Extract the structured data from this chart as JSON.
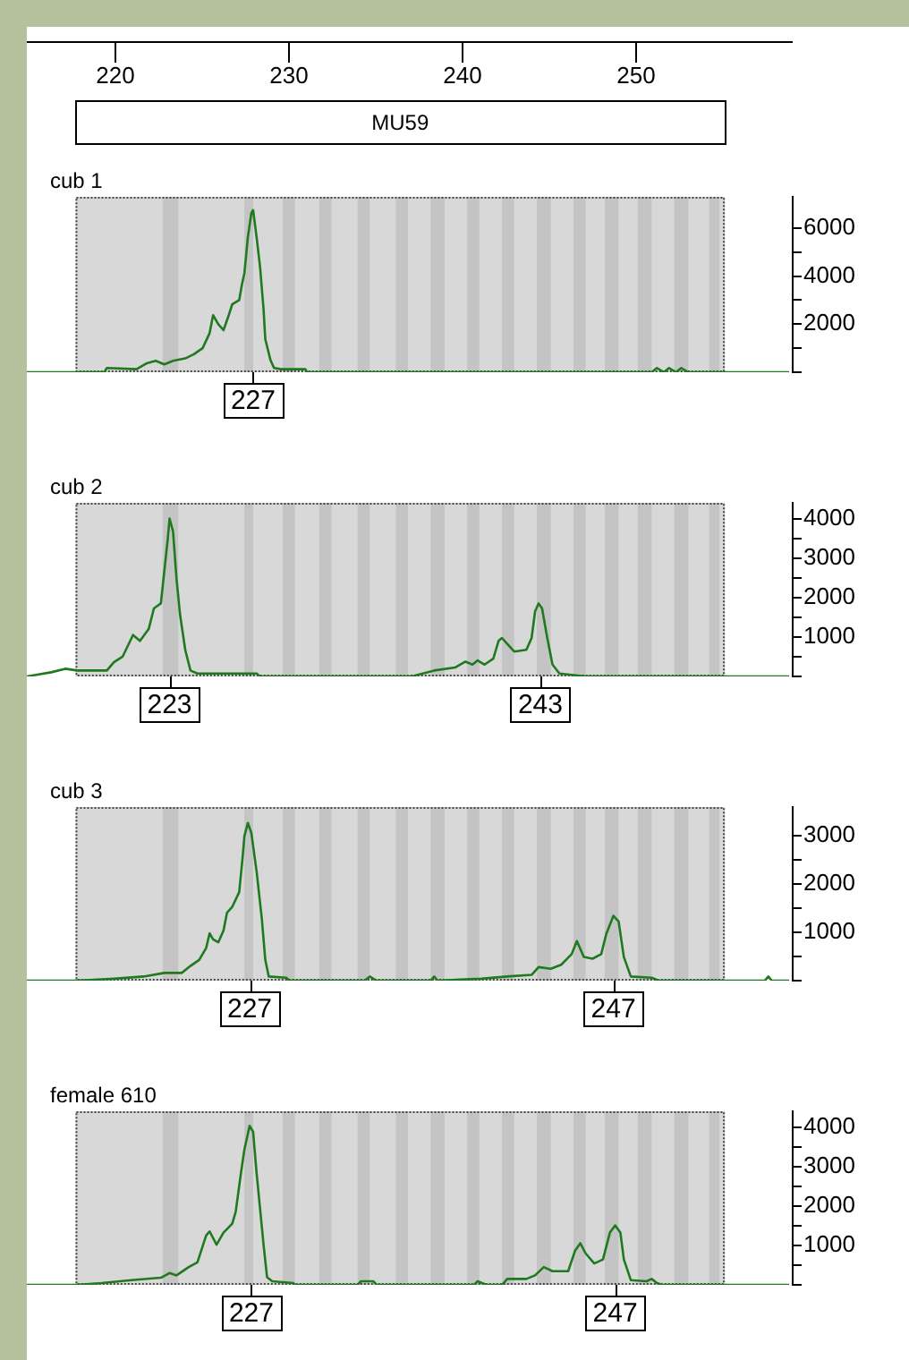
{
  "chart_data": [
    {
      "type": "line",
      "title": "cub 1",
      "xlim": [
        215,
        259
      ],
      "ylim": [
        0,
        7300
      ],
      "marker": "none",
      "xticks": [
        220,
        230,
        240,
        250
      ],
      "yticks": [
        {
          "value": 0,
          "label": null
        },
        {
          "value": 1000,
          "label": null
        },
        2000,
        {
          "value": 3000,
          "label": null
        },
        4000,
        {
          "value": 5000,
          "label": null
        },
        6000
      ],
      "bands": [
        {
          "axis": "x",
          "from": 217.8,
          "to": 255.1,
          "label": "MU59",
          "color": "#d8d8d8"
        },
        {
          "axis": "x",
          "from": 222.8,
          "to": 223.7,
          "color": "#c4c4c4"
        },
        {
          "axis": "x",
          "from": 227.5,
          "to": 228.0,
          "color": "#c4c4c4"
        },
        {
          "axis": "x",
          "from": 229.7,
          "to": 230.4,
          "color": "#c4c4c4"
        },
        {
          "axis": "x",
          "from": 231.8,
          "to": 232.5,
          "color": "#c4c4c4"
        },
        {
          "axis": "x",
          "from": 234.0,
          "to": 234.7,
          "color": "#c4c4c4"
        },
        {
          "axis": "x",
          "from": 236.2,
          "to": 236.9,
          "color": "#c4c4c4"
        },
        {
          "axis": "x",
          "from": 238.2,
          "to": 239.0,
          "color": "#c4c4c4"
        },
        {
          "axis": "x",
          "from": 240.3,
          "to": 241.0,
          "color": "#c4c4c4"
        },
        {
          "axis": "x",
          "from": 242.3,
          "to": 243.0,
          "color": "#c4c4c4"
        },
        {
          "axis": "x",
          "from": 244.3,
          "to": 245.1,
          "color": "#c4c4c4"
        },
        {
          "axis": "x",
          "from": 246.4,
          "to": 247.1,
          "color": "#c4c4c4"
        },
        {
          "axis": "x",
          "from": 248.2,
          "to": 249.0,
          "color": "#c4c4c4"
        },
        {
          "axis": "x",
          "from": 250.1,
          "to": 250.9,
          "color": "#c4c4c4"
        },
        {
          "axis": "x",
          "from": 252.2,
          "to": 253.0,
          "color": "#c4c4c4"
        },
        {
          "axis": "x",
          "from": 254.2,
          "to": 254.8,
          "color": "#c4c4c4"
        }
      ],
      "annotations": [
        {
          "text": "227",
          "x": 228.0,
          "y": 0
        }
      ],
      "x": [
        215,
        219.45,
        219.6,
        221.3,
        221.9,
        222.4,
        222.9,
        223.4,
        224.1,
        224.6,
        225.1,
        225.5,
        225.7,
        226.0,
        226.3,
        226.6,
        226.8,
        227.2,
        227.35,
        227.5,
        227.7,
        227.9,
        228.0,
        228.2,
        228.4,
        228.6,
        228.7,
        229.0,
        229.2,
        229.6,
        231.0,
        231.1,
        250.9,
        251.2,
        251.6,
        251.9,
        252.3,
        252.6,
        253.0,
        258.8
      ],
      "series": [
        {
          "color": "#1f7a1f",
          "values": [
            0,
            0,
            175,
            125,
            375,
            475,
            325,
            475,
            575,
            750,
            1000,
            1625,
            2375,
            2000,
            1750,
            2375,
            2825,
            3000,
            3625,
            4125,
            5625,
            6625,
            6750,
            5625,
            4375,
            2625,
            1375,
            500,
            175,
            125,
            125,
            0,
            0,
            175,
            0,
            175,
            0,
            175,
            0,
            0
          ]
        }
      ]
    },
    {
      "type": "line",
      "title": "cub 2",
      "xlim": [
        215,
        259
      ],
      "ylim": [
        0,
        4400
      ],
      "marker": "none",
      "tick_labels": "y",
      "yticks": [
        {
          "value": 0,
          "label": null
        },
        {
          "value": 500,
          "label": null
        },
        1000,
        {
          "value": 1500,
          "label": null
        },
        2000,
        {
          "value": 2500,
          "label": null
        },
        3000,
        {
          "value": 3500,
          "label": null
        },
        4000
      ],
      "bands": [
        {
          "axis": "x",
          "from": 217.8,
          "to": 255.1,
          "color": "#d8d8d8"
        },
        {
          "axis": "x",
          "from": 222.8,
          "to": 223.7,
          "color": "#c4c4c4"
        },
        {
          "axis": "x",
          "from": 227.5,
          "to": 228.0,
          "color": "#c4c4c4"
        },
        {
          "axis": "x",
          "from": 229.7,
          "to": 230.4,
          "color": "#c4c4c4"
        },
        {
          "axis": "x",
          "from": 231.8,
          "to": 232.5,
          "color": "#c4c4c4"
        },
        {
          "axis": "x",
          "from": 234.0,
          "to": 234.7,
          "color": "#c4c4c4"
        },
        {
          "axis": "x",
          "from": 236.2,
          "to": 236.9,
          "color": "#c4c4c4"
        },
        {
          "axis": "x",
          "from": 238.2,
          "to": 239.0,
          "color": "#c4c4c4"
        },
        {
          "axis": "x",
          "from": 240.3,
          "to": 241.0,
          "color": "#c4c4c4"
        },
        {
          "axis": "x",
          "from": 242.3,
          "to": 243.0,
          "color": "#c4c4c4"
        },
        {
          "axis": "x",
          "from": 244.3,
          "to": 245.1,
          "color": "#c4c4c4"
        },
        {
          "axis": "x",
          "from": 246.4,
          "to": 247.1,
          "color": "#c4c4c4"
        },
        {
          "axis": "x",
          "from": 248.2,
          "to": 249.0,
          "color": "#c4c4c4"
        },
        {
          "axis": "x",
          "from": 250.1,
          "to": 250.9,
          "color": "#c4c4c4"
        },
        {
          "axis": "x",
          "from": 252.2,
          "to": 253.0,
          "color": "#c4c4c4"
        },
        {
          "axis": "x",
          "from": 254.2,
          "to": 254.8,
          "color": "#c4c4c4"
        }
      ],
      "annotations": [
        {
          "text": "223",
          "x": 223.2,
          "y": 0
        },
        {
          "text": "243",
          "x": 244.5,
          "y": 0
        }
      ],
      "x": [
        215,
        216.4,
        217.2,
        217.9,
        219.6,
        220.0,
        220.5,
        221.1,
        221.5,
        222.0,
        222.3,
        222.7,
        223.1,
        223.2,
        223.4,
        223.6,
        223.8,
        224.1,
        224.4,
        224.8,
        226.8,
        228.2,
        228.4,
        237.1,
        238.4,
        239.6,
        240.2,
        240.6,
        240.9,
        241.3,
        241.8,
        242.1,
        242.3,
        242.6,
        243.0,
        243.7,
        244.0,
        244.2,
        244.4,
        244.6,
        244.9,
        245.2,
        245.6,
        247.1,
        258.8
      ],
      "series": [
        {
          "color": "#1f7a1f",
          "values": [
            0,
            105,
            195,
            150,
            150,
            360,
            500,
            1050,
            900,
            1200,
            1725,
            1850,
            3500,
            4000,
            3675,
            2475,
            1575,
            675,
            150,
            75,
            75,
            75,
            0,
            0,
            150,
            225,
            375,
            300,
            405,
            300,
            450,
            900,
            975,
            825,
            630,
            675,
            975,
            1650,
            1850,
            1725,
            975,
            300,
            75,
            0,
            0
          ]
        }
      ]
    },
    {
      "type": "line",
      "title": "cub 3",
      "xlim": [
        215,
        259
      ],
      "ylim": [
        0,
        3600
      ],
      "marker": "none",
      "tick_labels": "y",
      "yticks": [
        {
          "value": 0,
          "label": null
        },
        {
          "value": 500,
          "label": null
        },
        1000,
        {
          "value": 1500,
          "label": null
        },
        2000,
        {
          "value": 2500,
          "label": null
        },
        3000
      ],
      "bands": [
        {
          "axis": "x",
          "from": 217.8,
          "to": 255.1,
          "color": "#d8d8d8"
        },
        {
          "axis": "x",
          "from": 222.8,
          "to": 223.7,
          "color": "#c4c4c4"
        },
        {
          "axis": "x",
          "from": 227.5,
          "to": 228.0,
          "color": "#c4c4c4"
        },
        {
          "axis": "x",
          "from": 229.7,
          "to": 230.4,
          "color": "#c4c4c4"
        },
        {
          "axis": "x",
          "from": 231.8,
          "to": 232.5,
          "color": "#c4c4c4"
        },
        {
          "axis": "x",
          "from": 234.0,
          "to": 234.7,
          "color": "#c4c4c4"
        },
        {
          "axis": "x",
          "from": 236.2,
          "to": 236.9,
          "color": "#c4c4c4"
        },
        {
          "axis": "x",
          "from": 238.2,
          "to": 239.0,
          "color": "#c4c4c4"
        },
        {
          "axis": "x",
          "from": 240.3,
          "to": 241.0,
          "color": "#c4c4c4"
        },
        {
          "axis": "x",
          "from": 242.3,
          "to": 243.0,
          "color": "#c4c4c4"
        },
        {
          "axis": "x",
          "from": 244.3,
          "to": 245.1,
          "color": "#c4c4c4"
        },
        {
          "axis": "x",
          "from": 246.4,
          "to": 247.1,
          "color": "#c4c4c4"
        },
        {
          "axis": "x",
          "from": 248.2,
          "to": 249.0,
          "color": "#c4c4c4"
        },
        {
          "axis": "x",
          "from": 250.1,
          "to": 250.9,
          "color": "#c4c4c4"
        },
        {
          "axis": "x",
          "from": 252.2,
          "to": 253.0,
          "color": "#c4c4c4"
        },
        {
          "axis": "x",
          "from": 254.2,
          "to": 254.8,
          "color": "#c4c4c4"
        }
      ],
      "annotations": [
        {
          "text": "227",
          "x": 227.8,
          "y": 0
        },
        {
          "text": "247",
          "x": 248.7,
          "y": 0
        }
      ],
      "x": [
        215,
        217.9,
        220.0,
        221.7,
        222.9,
        223.9,
        224.4,
        224.9,
        225.3,
        225.5,
        225.7,
        226.0,
        226.3,
        226.5,
        226.8,
        227.2,
        227.4,
        227.5,
        227.7,
        227.9,
        228.2,
        228.5,
        228.7,
        228.9,
        229.9,
        230.1,
        234.4,
        234.7,
        235.1,
        238.2,
        238.4,
        238.6,
        241.1,
        242.6,
        244.0,
        244.4,
        245.1,
        245.7,
        246.3,
        246.6,
        247.0,
        247.5,
        248.0,
        248.3,
        248.7,
        249.0,
        249.3,
        249.7,
        250.9,
        251.3,
        257.4,
        257.6,
        257.8,
        258.8
      ],
      "series": [
        {
          "color": "#1f7a1f",
          "values": [
            0,
            0,
            40,
            85,
            160,
            160,
            305,
            430,
            675,
            980,
            855,
            795,
            1040,
            1410,
            1530,
            1835,
            2570,
            3000,
            3270,
            3060,
            2265,
            1285,
            430,
            85,
            60,
            0,
            0,
            85,
            0,
            0,
            85,
            0,
            40,
            85,
            120,
            280,
            245,
            330,
            550,
            820,
            490,
            455,
            550,
            980,
            1345,
            1225,
            490,
            85,
            60,
            0,
            0,
            85,
            0,
            0
          ]
        }
      ]
    },
    {
      "type": "line",
      "title": "female 610",
      "xlim": [
        215,
        259
      ],
      "ylim": [
        0,
        4400
      ],
      "marker": "none",
      "tick_labels": "y",
      "yticks": [
        {
          "value": 0,
          "label": null
        },
        {
          "value": 500,
          "label": null
        },
        1000,
        {
          "value": 1500,
          "label": null
        },
        2000,
        {
          "value": 2500,
          "label": null
        },
        3000,
        {
          "value": 3500,
          "label": null
        },
        4000
      ],
      "bands": [
        {
          "axis": "x",
          "from": 217.8,
          "to": 255.1,
          "color": "#d8d8d8"
        },
        {
          "axis": "x",
          "from": 222.8,
          "to": 223.7,
          "color": "#c4c4c4"
        },
        {
          "axis": "x",
          "from": 227.5,
          "to": 228.0,
          "color": "#c4c4c4"
        },
        {
          "axis": "x",
          "from": 229.7,
          "to": 230.4,
          "color": "#c4c4c4"
        },
        {
          "axis": "x",
          "from": 231.8,
          "to": 232.5,
          "color": "#c4c4c4"
        },
        {
          "axis": "x",
          "from": 234.0,
          "to": 234.7,
          "color": "#c4c4c4"
        },
        {
          "axis": "x",
          "from": 236.2,
          "to": 236.9,
          "color": "#c4c4c4"
        },
        {
          "axis": "x",
          "from": 238.2,
          "to": 239.0,
          "color": "#c4c4c4"
        },
        {
          "axis": "x",
          "from": 240.3,
          "to": 241.0,
          "color": "#c4c4c4"
        },
        {
          "axis": "x",
          "from": 242.3,
          "to": 243.0,
          "color": "#c4c4c4"
        },
        {
          "axis": "x",
          "from": 244.3,
          "to": 245.1,
          "color": "#c4c4c4"
        },
        {
          "axis": "x",
          "from": 246.4,
          "to": 247.1,
          "color": "#c4c4c4"
        },
        {
          "axis": "x",
          "from": 248.2,
          "to": 249.0,
          "color": "#c4c4c4"
        },
        {
          "axis": "x",
          "from": 250.1,
          "to": 250.9,
          "color": "#c4c4c4"
        },
        {
          "axis": "x",
          "from": 252.2,
          "to": 253.0,
          "color": "#c4c4c4"
        },
        {
          "axis": "x",
          "from": 254.2,
          "to": 254.8,
          "color": "#c4c4c4"
        }
      ],
      "annotations": [
        {
          "text": "227",
          "x": 227.9,
          "y": 0
        },
        {
          "text": "247",
          "x": 248.8,
          "y": 0
        }
      ],
      "x": [
        215,
        217.9,
        219.3,
        221.0,
        222.7,
        223.2,
        223.6,
        224.3,
        224.8,
        225.3,
        225.5,
        225.9,
        226.3,
        226.8,
        227.0,
        227.3,
        227.5,
        227.8,
        228.0,
        228.2,
        228.6,
        228.8,
        229.1,
        230.3,
        230.4,
        234.0,
        234.2,
        234.9,
        235.1,
        240.7,
        240.9,
        241.4,
        242.3,
        242.6,
        243.7,
        244.2,
        244.7,
        245.2,
        246.1,
        246.5,
        246.8,
        247.1,
        247.6,
        248.1,
        248.5,
        248.8,
        249.1,
        249.3,
        249.7,
        250.6,
        250.9,
        251.2,
        251.5,
        258.8
      ],
      "series": [
        {
          "color": "#1f7a1f",
          "values": [
            0,
            0,
            45,
            120,
            180,
            300,
            240,
            450,
            570,
            1250,
            1355,
            1020,
            1325,
            1550,
            1850,
            2830,
            3430,
            4030,
            3880,
            2830,
            1020,
            195,
            90,
            45,
            0,
            0,
            90,
            90,
            0,
            0,
            90,
            0,
            0,
            150,
            150,
            240,
            450,
            345,
            345,
            870,
            1055,
            800,
            540,
            645,
            1325,
            1505,
            1325,
            645,
            120,
            90,
            150,
            45,
            0,
            0
          ]
        }
      ]
    }
  ]
}
